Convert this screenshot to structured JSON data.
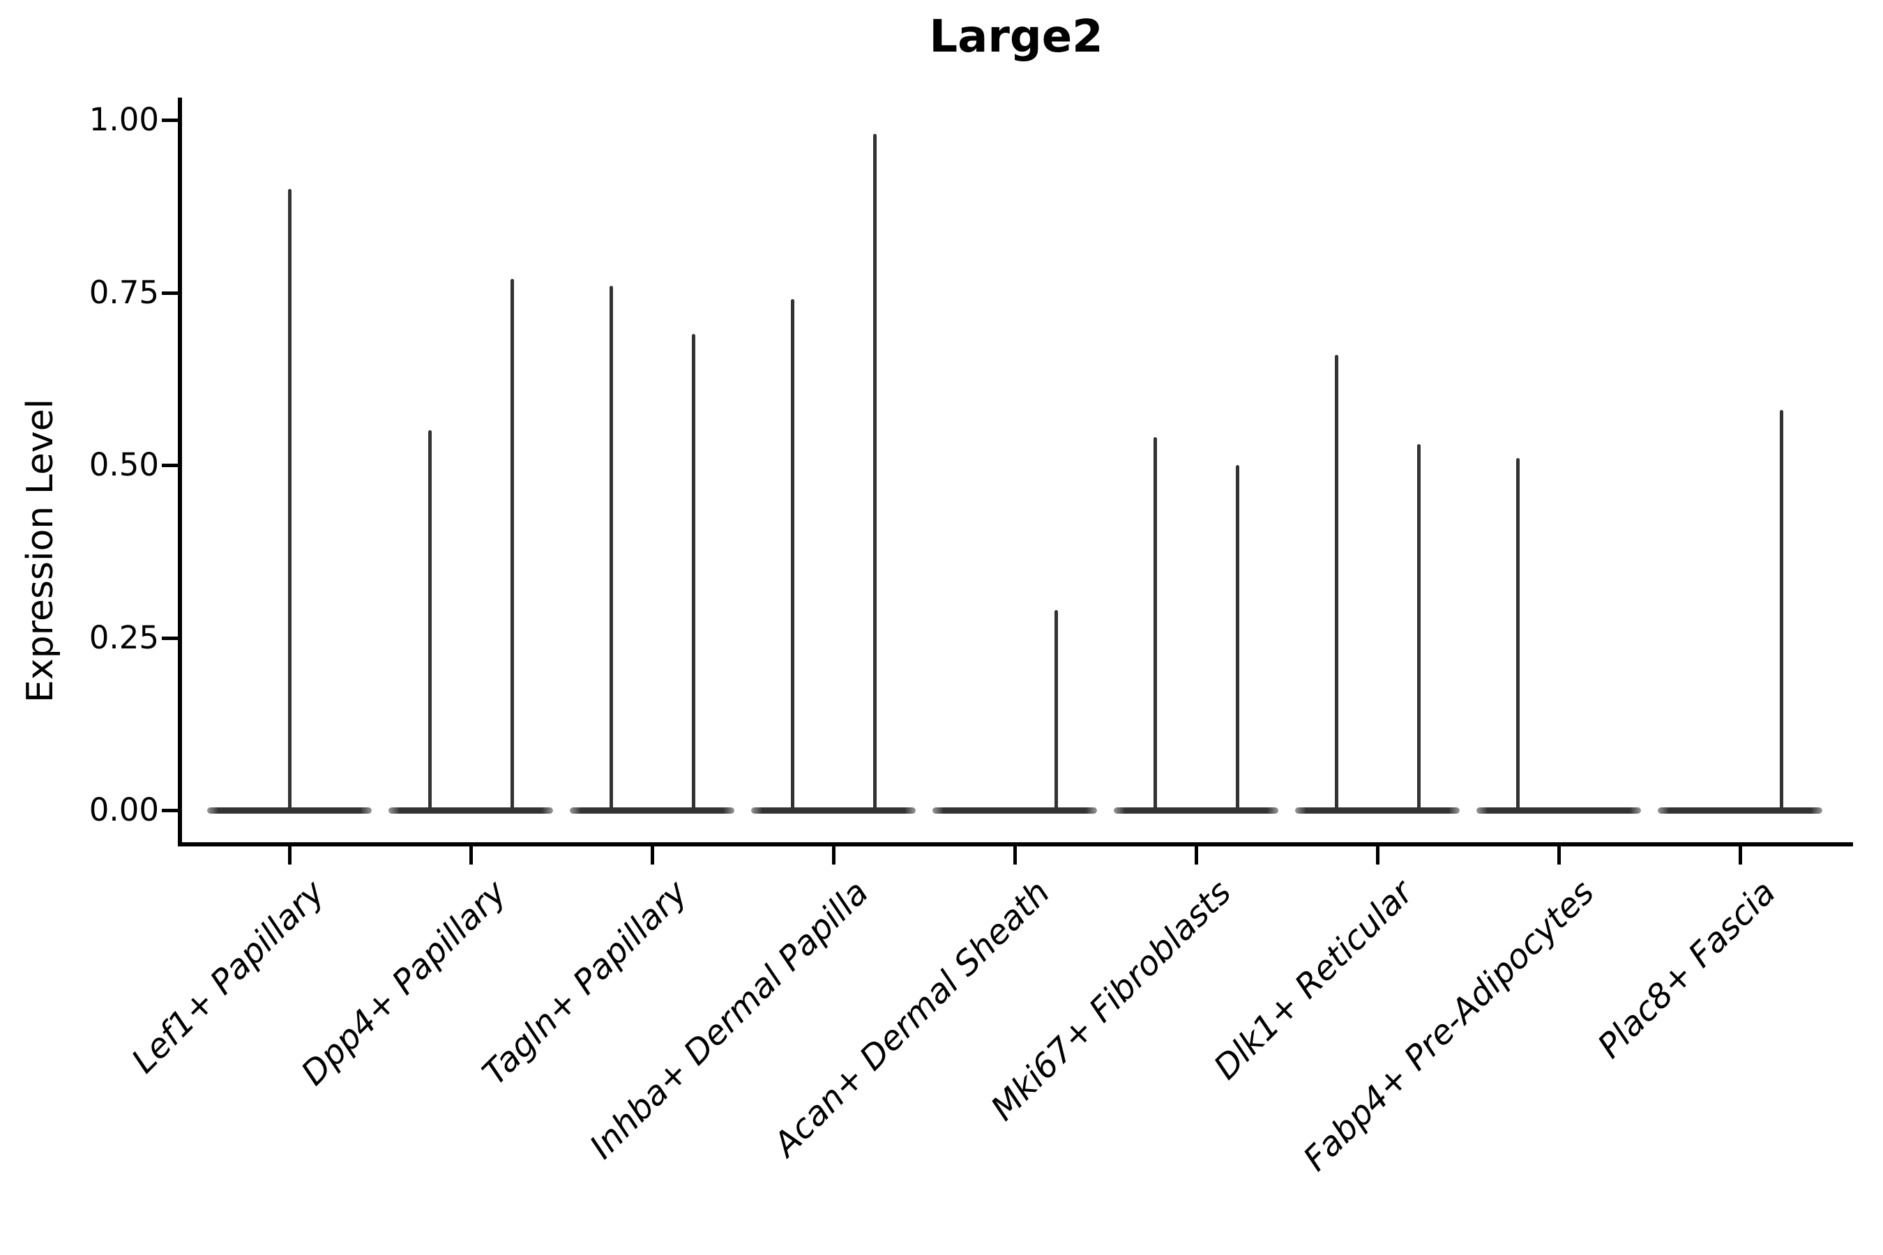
{
  "figure": {
    "title": "Large2"
  },
  "y_axis": {
    "label": "Expression Level",
    "tick_labels": [
      "0.00",
      "0.25",
      "0.50",
      "0.75",
      "1.00"
    ]
  },
  "x_axis": {
    "categories": [
      "Lef1+ Papillary",
      "Dpp4+ Papillary",
      "Tagln+ Papillary",
      "Inhba+ Dermal Papilla",
      "Acan+ Dermal Sheath",
      "Mki67+ Fibroblasts",
      "Dlk1+ Reticular",
      "Fabp4+ Pre-Adipocytes",
      "Plac8+ Fascia"
    ]
  },
  "chart_data": {
    "type": "violin",
    "title": "Large2",
    "xlabel": "",
    "ylabel": "Expression Level",
    "ylim": [
      0,
      1.0
    ],
    "yticks": [
      0.0,
      0.25,
      0.5,
      0.75,
      1.0
    ],
    "ytick_labels": [
      "0.00",
      "0.25",
      "0.50",
      "0.75",
      "1.00"
    ],
    "grid": false,
    "legend": false,
    "categories": [
      "Lef1+ Papillary",
      "Dpp4+ Papillary",
      "Tagln+ Papillary",
      "Inhba+ Dermal Papilla",
      "Acan+ Dermal Sheath",
      "Mki67+ Fibroblasts",
      "Dlk1+ Reticular",
      "Fabp4+ Pre-Adipocytes",
      "Plac8+ Fascia"
    ],
    "description": "Thin spike violins; most expression mass at 0 with narrow tails up to the max expression value. Categories with two sub-violins list two maxima (left, right); a maximum of 0 means a flat violin at zero.",
    "violins": [
      {
        "category": "Lef1+ Papillary",
        "maxima": [
          0.9
        ]
      },
      {
        "category": "Dpp4+ Papillary",
        "maxima": [
          0.55,
          0.77
        ]
      },
      {
        "category": "Tagln+ Papillary",
        "maxima": [
          0.76,
          0.69
        ]
      },
      {
        "category": "Inhba+ Dermal Papilla",
        "maxima": [
          0.74,
          0.98
        ]
      },
      {
        "category": "Acan+ Dermal Sheath",
        "maxima": [
          0.0,
          0.29
        ]
      },
      {
        "category": "Mki67+ Fibroblasts",
        "maxima": [
          0.54,
          0.5
        ]
      },
      {
        "category": "Dlk1+ Reticular",
        "maxima": [
          0.66,
          0.53
        ]
      },
      {
        "category": "Fabp4+ Pre-Adipocytes",
        "maxima": [
          0.51,
          0.0
        ]
      },
      {
        "category": "Plac8+ Fascia",
        "maxima": [
          0.0,
          0.58
        ]
      }
    ]
  },
  "colors": {
    "violin": "#333333",
    "axis": "#000000",
    "text": "#000000",
    "background": "#ffffff"
  }
}
